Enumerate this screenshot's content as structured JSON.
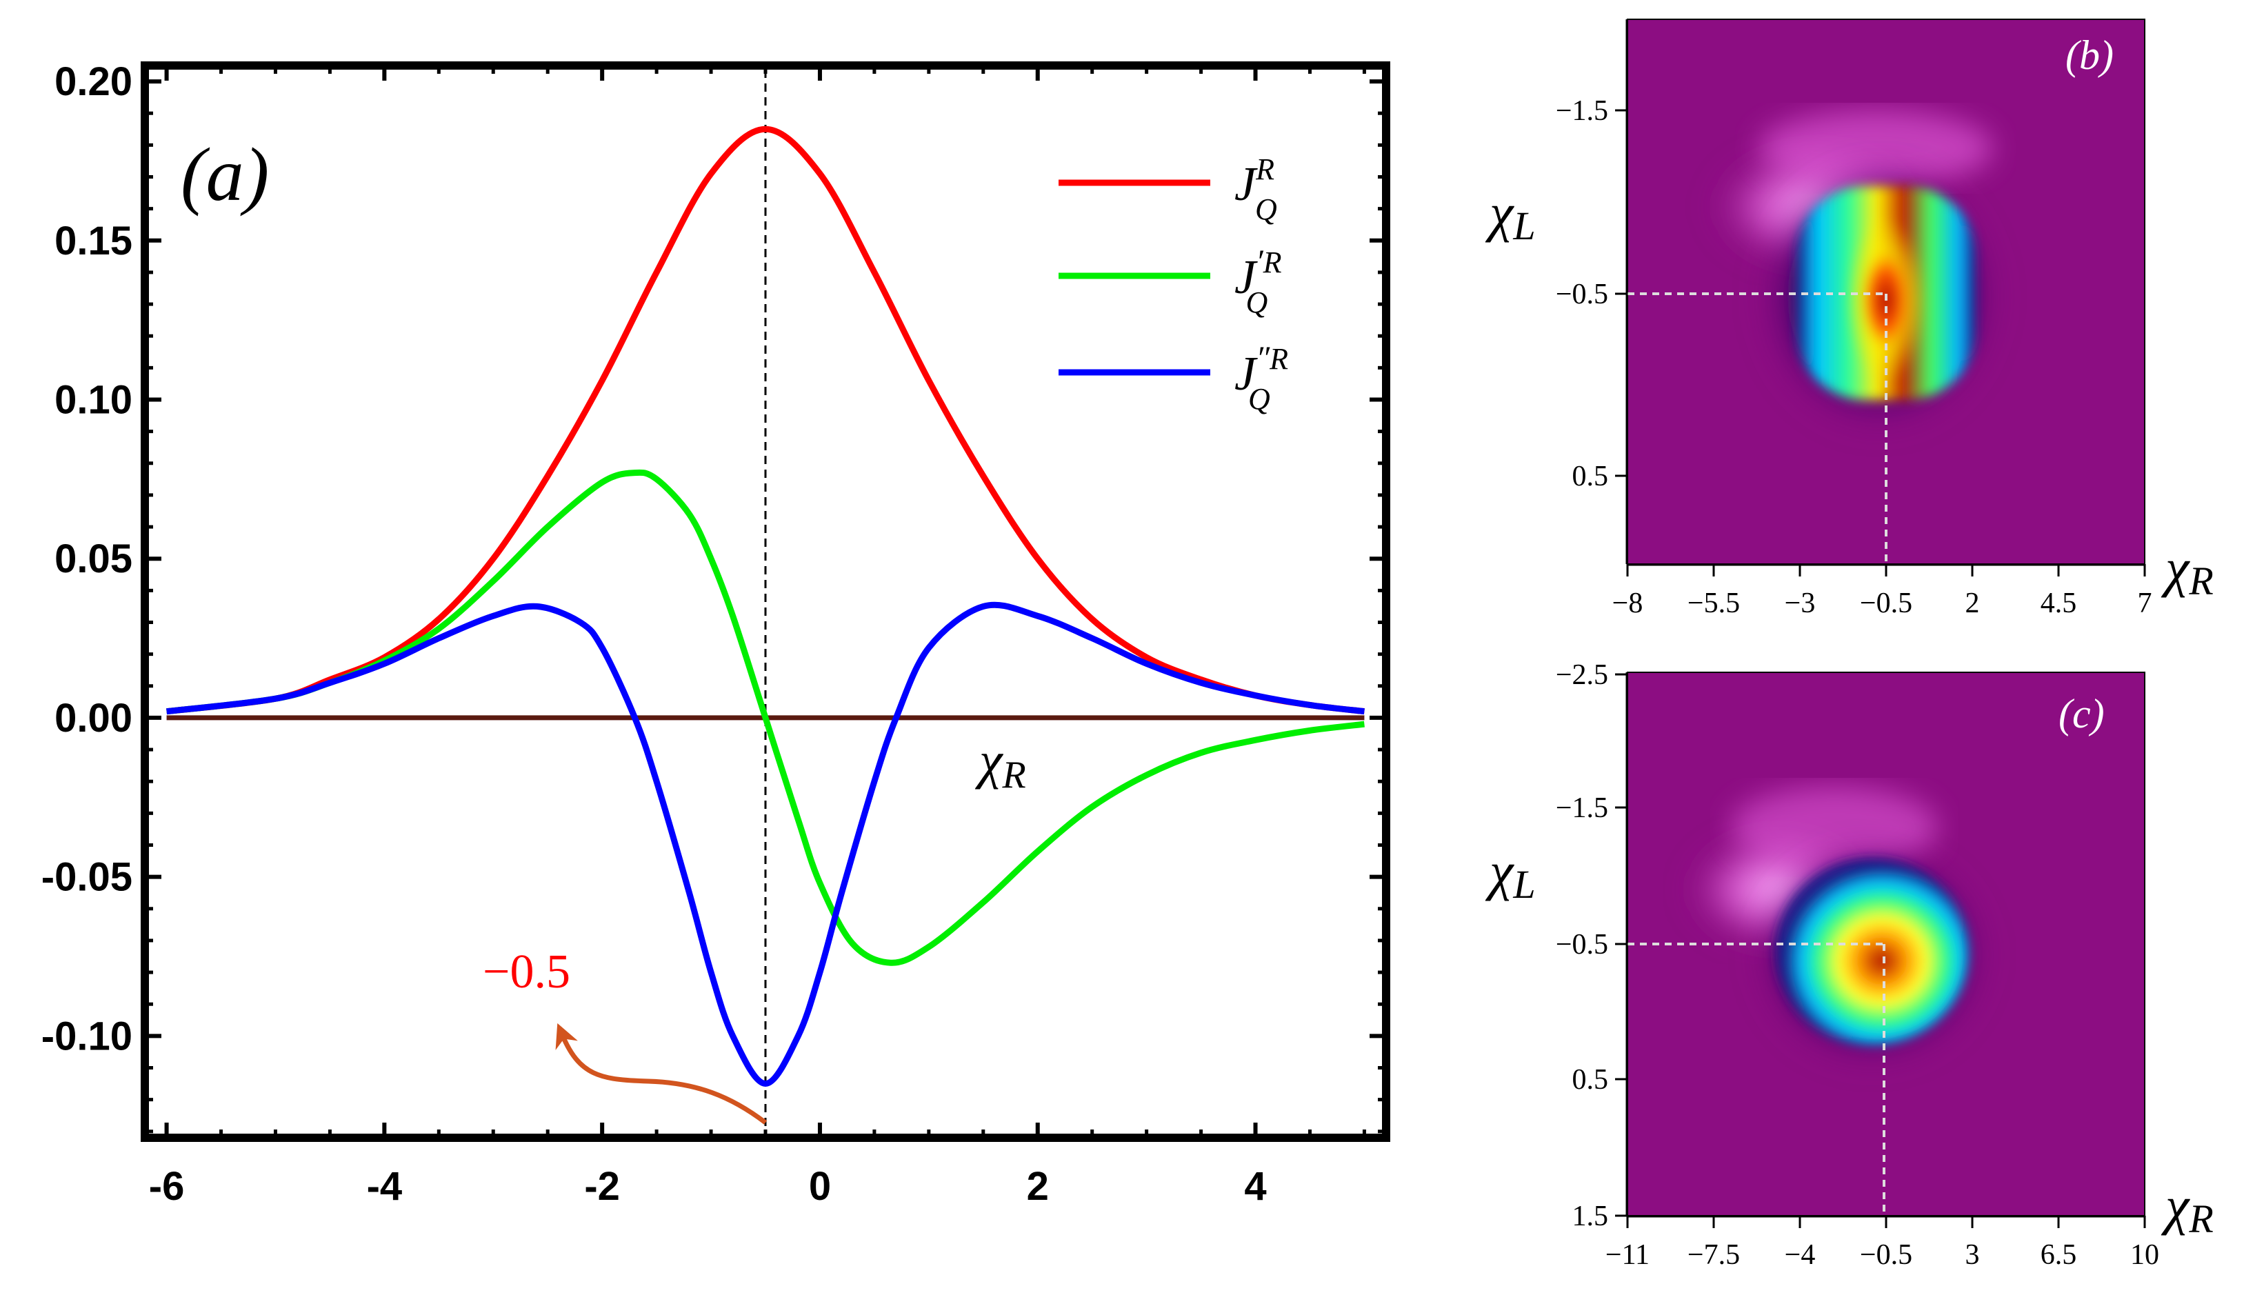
{
  "chart_data": [
    {
      "panel": "(a)",
      "type": "line",
      "title": "",
      "xlabel": "χ_R",
      "ylabel": "",
      "xlim": [
        -6.2,
        5.2
      ],
      "ylim": [
        -0.132,
        0.205
      ],
      "xticks": [
        -6,
        -4,
        -2,
        0,
        2,
        4
      ],
      "yticks": [
        0.2,
        0.15,
        0.1,
        0.05,
        0.0,
        -0.05,
        -0.1
      ],
      "ytick_labels": [
        "0.20",
        "0.15",
        "0.10",
        "0.05",
        "0.00",
        "-0.05",
        "-0.10"
      ],
      "legend_position": "top-right",
      "series": [
        {
          "name": "J_Q^R",
          "color": "#ff0000",
          "x": [
            -6,
            -5,
            -4.5,
            -4,
            -3.5,
            -3,
            -2.5,
            -2,
            -1.5,
            -1,
            -0.5,
            0,
            0.5,
            1,
            1.5,
            2,
            2.5,
            3,
            3.5,
            4,
            4.5,
            5
          ],
          "values": [
            0.002,
            0.006,
            0.012,
            0.019,
            0.031,
            0.05,
            0.076,
            0.106,
            0.14,
            0.171,
            0.185,
            0.171,
            0.14,
            0.106,
            0.076,
            0.05,
            0.031,
            0.019,
            0.012,
            0.007,
            0.004,
            0.002
          ]
        },
        {
          "name": "J'_Q^R",
          "color": "#00ee00",
          "x": [
            -6,
            -5,
            -4.5,
            -4,
            -3.5,
            -3,
            -2.5,
            -2,
            -1.7,
            -1.5,
            -1.2,
            -1,
            -0.8,
            -0.5,
            -0.2,
            0,
            0.3,
            0.65,
            1,
            1.5,
            2,
            2.5,
            3,
            3.5,
            4,
            4.5,
            5
          ],
          "values": [
            0.002,
            0.006,
            0.011,
            0.018,
            0.028,
            0.043,
            0.06,
            0.074,
            0.077,
            0.075,
            0.064,
            0.05,
            0.032,
            0.0,
            -0.032,
            -0.052,
            -0.071,
            -0.077,
            -0.072,
            -0.058,
            -0.042,
            -0.028,
            -0.018,
            -0.011,
            -0.007,
            -0.004,
            -0.002
          ]
        },
        {
          "name": "J''_Q^R",
          "color": "#0000ff",
          "x": [
            -6,
            -5,
            -4.5,
            -4,
            -3.5,
            -3,
            -2.6,
            -2.2,
            -2,
            -1.7,
            -1.5,
            -1.2,
            -1,
            -0.8,
            -0.5,
            -0.2,
            0,
            0.2,
            0.5,
            0.7,
            1,
            1.5,
            2,
            2.5,
            3,
            3.5,
            4,
            4.5,
            5
          ],
          "values": [
            0.002,
            0.006,
            0.011,
            0.017,
            0.025,
            0.032,
            0.035,
            0.03,
            0.022,
            0.0,
            -0.02,
            -0.055,
            -0.08,
            -0.1,
            -0.115,
            -0.1,
            -0.08,
            -0.055,
            -0.02,
            0.0,
            0.022,
            0.035,
            0.032,
            0.025,
            0.017,
            0.011,
            0.007,
            0.004,
            0.002
          ]
        }
      ],
      "legend": [
        "J_Q^R",
        "J'_Q^R",
        "J''_Q^R"
      ],
      "annotations": {
        "marker_x": -0.5,
        "arrow_label": "−0.5",
        "curve_axis_label": "χ_R"
      }
    },
    {
      "panel": "(b)",
      "type": "heatmap",
      "xlabel": "χ_R",
      "ylabel": "χ_L",
      "xticks": [
        "−8",
        "−5.5",
        "−3",
        "−0.5",
        "2",
        "4.5",
        "7"
      ],
      "yticks": [
        "−1.5",
        "−0.5",
        "0.5"
      ],
      "peak": {
        "x": -0.5,
        "y": -0.5
      }
    },
    {
      "panel": "(c)",
      "type": "heatmap",
      "xlabel": "χ_R",
      "ylabel": "χ_L",
      "xticks": [
        "−11",
        "−7.5",
        "−4",
        "−0.5",
        "3",
        "6.5",
        "10"
      ],
      "yticks": [
        "−2.5",
        "−1.5",
        "−0.5",
        "0.5",
        "1.5"
      ],
      "peak": {
        "x": -0.5,
        "y": -0.5
      }
    }
  ],
  "labels": {
    "panel_a": "(a)",
    "panel_b": "(b)",
    "panel_c": "(c)",
    "chi": "χ",
    "sub_R": "R",
    "sub_L": "L",
    "J": "J",
    "Q": "Q",
    "R": "R",
    "prime": "′",
    "dprime": "″",
    "arrow_label": "−0.5"
  },
  "colors": {
    "frame": "#000000",
    "zero_line": "#5a1a10",
    "arrow": "#d2541e",
    "arrow_label": "#ff0000",
    "heatmap_bg": "#8c0d82"
  }
}
